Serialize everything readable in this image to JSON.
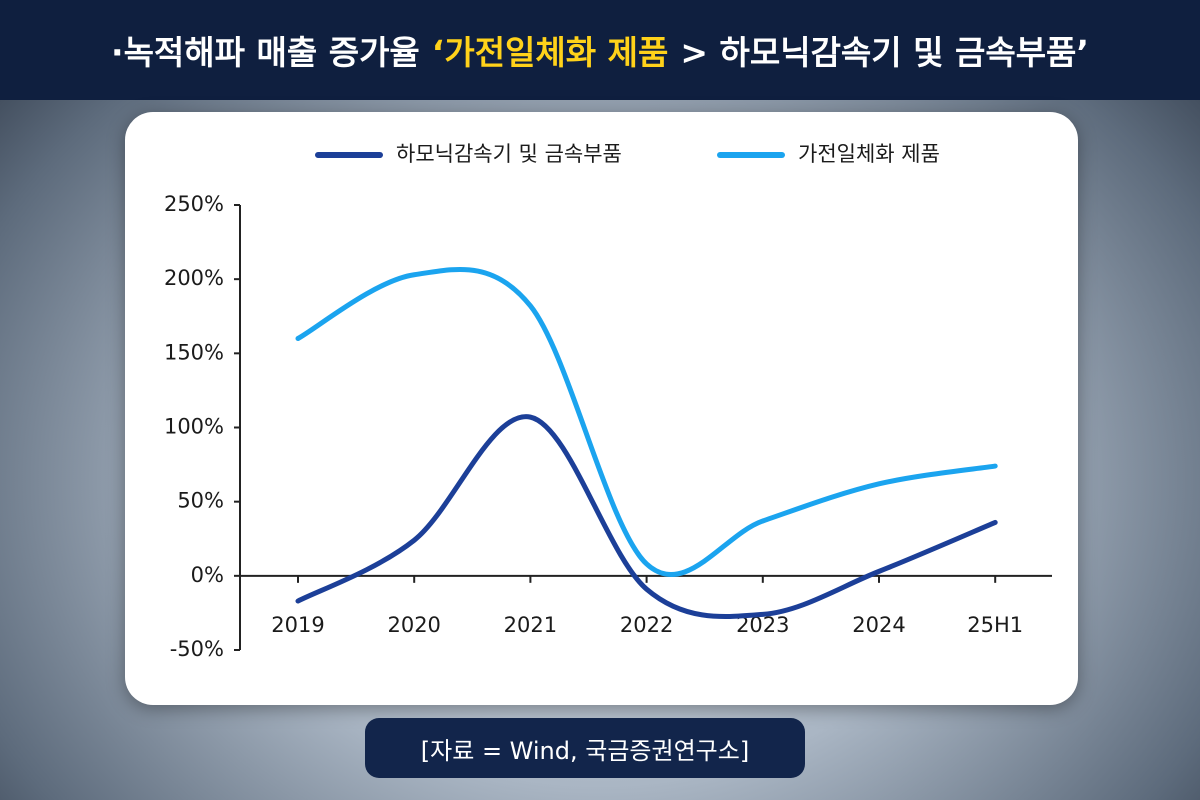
{
  "chart_data": {
    "type": "line",
    "title_prefix": "·녹적해파 매출 증가율",
    "title_highlight": "‘가전일체화 제품",
    "title_suffix": "> 하모닉감속기 및 금속부품’",
    "source": "[자료 = Wind, 국금증권연구소]",
    "categories": [
      "2019",
      "2020",
      "2021",
      "2022",
      "2023",
      "2024",
      "25H1"
    ],
    "series": [
      {
        "name": "하모닉감속기 및 금속부품",
        "color": "#1c3f98",
        "values": [
          -17,
          24,
          107,
          -9,
          -26,
          3,
          36
        ]
      },
      {
        "name": "가전일체화 제품",
        "color": "#1ba4ef",
        "values": [
          160,
          203,
          182,
          8,
          37,
          62,
          74
        ]
      }
    ],
    "ylim": [
      -50,
      250
    ],
    "yticks": [
      {
        "value": -50,
        "label": "-50%"
      },
      {
        "value": 0,
        "label": "0%"
      },
      {
        "value": 50,
        "label": "50%"
      },
      {
        "value": 100,
        "label": "100%"
      },
      {
        "value": 150,
        "label": "150%"
      },
      {
        "value": 200,
        "label": "200%"
      },
      {
        "value": 250,
        "label": "250%"
      }
    ],
    "legend": "top"
  }
}
